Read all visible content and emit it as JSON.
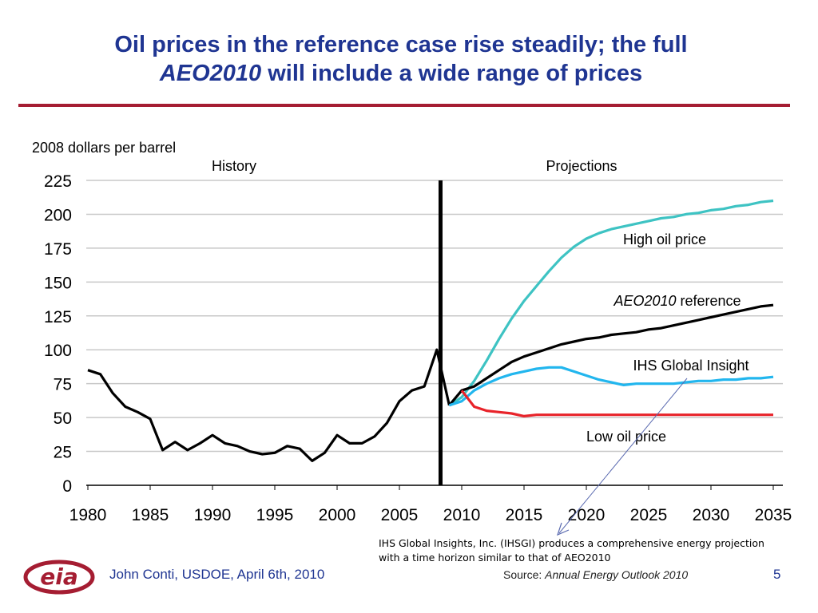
{
  "slide": {
    "title_line1": "Oil prices in the reference case rise steadily; the full",
    "title_line2_italic": "AEO2010",
    "title_line2_rest": " will include a wide range of prices",
    "note_line1": "IHS Global Insights, Inc. (IHSGI) produces a comprehensive energy projection",
    "note_line2": "with a time horizon similar to that of AEO2010",
    "footer_presenter": "John Conti, USDOE, April 6th, 2010",
    "footer_source_label": "Source: ",
    "footer_source_title": "Annual Energy Outlook 2010",
    "page_number": "5",
    "logo_text": "eia",
    "colors": {
      "title": "#1f3592",
      "rule": "#a51d32",
      "logo": "#a51d32"
    }
  },
  "chart_data": {
    "type": "line",
    "ylabel": "2008 dollars per barrel",
    "ylim": [
      0,
      225
    ],
    "yticks": [
      0,
      25,
      50,
      75,
      100,
      125,
      150,
      175,
      200,
      225
    ],
    "xlim": [
      1980,
      2035
    ],
    "xticks": [
      1980,
      1985,
      1990,
      1995,
      2000,
      2005,
      2010,
      2015,
      2020,
      2025,
      2030,
      2035
    ],
    "xtick_labels": [
      "1980",
      "1985",
      "1990",
      "1995",
      "2000",
      "2005",
      "2010",
      "2015",
      "2020",
      "2025",
      "2030",
      "2035"
    ],
    "grid": "horizontal",
    "divider_year": 2008.3,
    "region_labels": {
      "history": "History",
      "projections": "Projections"
    },
    "annotations": {
      "high": "High oil price",
      "reference_italic": "AEO2010",
      "reference_rest": " reference",
      "ihs": "IHS Global Insight",
      "low": "Low oil price"
    },
    "series": [
      {
        "name": "History",
        "color": "#000000",
        "x": [
          1980,
          1981,
          1982,
          1983,
          1984,
          1985,
          1986,
          1987,
          1988,
          1989,
          1990,
          1991,
          1992,
          1993,
          1994,
          1995,
          1996,
          1997,
          1998,
          1999,
          2000,
          2001,
          2002,
          2003,
          2004,
          2005,
          2006,
          2007,
          2008,
          2009
        ],
        "y": [
          85,
          82,
          68,
          58,
          54,
          49,
          26,
          32,
          26,
          31,
          37,
          31,
          29,
          25,
          23,
          24,
          29,
          27,
          18,
          24,
          37,
          31,
          31,
          36,
          46,
          62,
          70,
          73,
          100,
          59
        ]
      },
      {
        "name": "High oil price",
        "color": "#3ec3c3",
        "x": [
          2009,
          2010,
          2011,
          2012,
          2013,
          2014,
          2015,
          2016,
          2017,
          2018,
          2019,
          2020,
          2021,
          2022,
          2023,
          2024,
          2025,
          2026,
          2027,
          2028,
          2029,
          2030,
          2031,
          2032,
          2033,
          2034,
          2035
        ],
        "y": [
          59,
          65,
          77,
          92,
          108,
          123,
          136,
          147,
          158,
          168,
          176,
          182,
          186,
          189,
          191,
          193,
          195,
          197,
          198,
          200,
          201,
          203,
          204,
          206,
          207,
          209,
          210
        ]
      },
      {
        "name": "AEO2010 reference",
        "color": "#000000",
        "x": [
          2009,
          2010,
          2011,
          2012,
          2013,
          2014,
          2015,
          2016,
          2017,
          2018,
          2019,
          2020,
          2021,
          2022,
          2023,
          2024,
          2025,
          2026,
          2027,
          2028,
          2029,
          2030,
          2031,
          2032,
          2033,
          2034,
          2035
        ],
        "y": [
          59,
          70,
          73,
          79,
          85,
          91,
          95,
          98,
          101,
          104,
          106,
          108,
          109,
          111,
          112,
          113,
          115,
          116,
          118,
          120,
          122,
          124,
          126,
          128,
          130,
          132,
          133
        ]
      },
      {
        "name": "IHS Global Insight",
        "color": "#22b6ee",
        "x": [
          2009,
          2010,
          2011,
          2012,
          2013,
          2014,
          2015,
          2016,
          2017,
          2018,
          2019,
          2020,
          2021,
          2022,
          2023,
          2024,
          2025,
          2026,
          2027,
          2028,
          2029,
          2030,
          2031,
          2032,
          2033,
          2034,
          2035
        ],
        "y": [
          59,
          62,
          70,
          75,
          79,
          82,
          84,
          86,
          87,
          87,
          84,
          81,
          78,
          76,
          74,
          75,
          75,
          75,
          75,
          76,
          77,
          77,
          78,
          78,
          79,
          79,
          80
        ]
      },
      {
        "name": "Low oil price",
        "color": "#e8232a",
        "x": [
          2010,
          2011,
          2012,
          2013,
          2014,
          2015,
          2016,
          2017,
          2018,
          2019,
          2020,
          2021,
          2022,
          2023,
          2024,
          2025,
          2026,
          2027,
          2028,
          2029,
          2030,
          2031,
          2032,
          2033,
          2034,
          2035
        ],
        "y": [
          70,
          58,
          55,
          54,
          53,
          51,
          52,
          52,
          52,
          52,
          52,
          52,
          52,
          52,
          52,
          52,
          52,
          52,
          52,
          52,
          52,
          52,
          52,
          52,
          52,
          52
        ]
      }
    ]
  }
}
